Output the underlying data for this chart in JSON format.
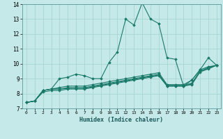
{
  "xlabel": "Humidex (Indice chaleur)",
  "xlim": [
    -0.5,
    23.5
  ],
  "ylim": [
    7,
    14
  ],
  "yticks": [
    7,
    8,
    9,
    10,
    11,
    12,
    13,
    14
  ],
  "xticks": [
    0,
    1,
    2,
    3,
    4,
    5,
    6,
    7,
    8,
    9,
    10,
    11,
    12,
    13,
    14,
    15,
    16,
    17,
    18,
    19,
    20,
    21,
    22,
    23
  ],
  "bg_color": "#c5e8e8",
  "grid_color": "#a8d4d4",
  "line_color": "#1a7a6a",
  "lines": [
    [
      7.4,
      7.5,
      8.2,
      8.3,
      9.0,
      9.1,
      9.3,
      9.2,
      9.0,
      9.0,
      10.1,
      10.8,
      13.0,
      12.6,
      14.1,
      13.0,
      12.7,
      10.4,
      10.3,
      8.5,
      8.9,
      9.6,
      10.4,
      9.9
    ],
    [
      7.4,
      7.5,
      8.2,
      8.3,
      8.4,
      8.5,
      8.5,
      8.5,
      8.6,
      8.7,
      8.8,
      8.9,
      9.0,
      9.1,
      9.2,
      9.3,
      9.4,
      8.6,
      8.6,
      8.6,
      8.9,
      9.6,
      9.8,
      9.9
    ],
    [
      7.4,
      7.5,
      8.2,
      8.3,
      8.3,
      8.4,
      8.4,
      8.4,
      8.5,
      8.6,
      8.7,
      8.8,
      8.9,
      9.0,
      9.1,
      9.2,
      9.3,
      8.55,
      8.55,
      8.55,
      8.7,
      9.5,
      9.75,
      9.9
    ],
    [
      7.4,
      7.5,
      8.2,
      8.3,
      8.3,
      8.35,
      8.35,
      8.35,
      8.45,
      8.55,
      8.65,
      8.75,
      8.85,
      8.95,
      9.05,
      9.15,
      9.25,
      8.5,
      8.5,
      8.5,
      8.65,
      9.5,
      9.7,
      9.9
    ],
    [
      7.4,
      7.5,
      8.1,
      8.2,
      8.2,
      8.3,
      8.3,
      8.3,
      8.4,
      8.5,
      8.6,
      8.7,
      8.8,
      8.9,
      9.0,
      9.1,
      9.2,
      8.5,
      8.5,
      8.5,
      8.6,
      9.45,
      9.65,
      9.9
    ]
  ]
}
